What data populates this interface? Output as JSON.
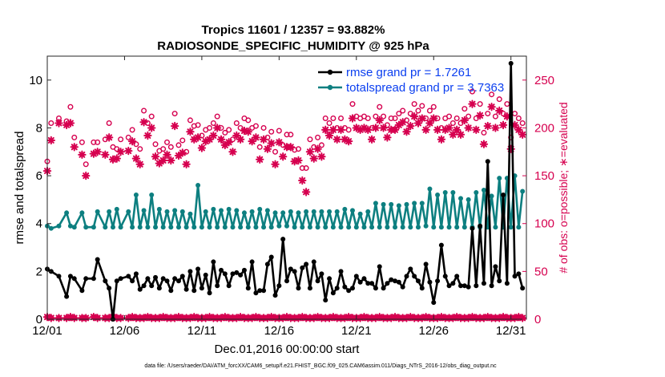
{
  "chart_data": {
    "type": "line",
    "title_line1": "Tropics 11601 / 12357 = 93.882%",
    "title_line2": "RADIOSONDE_SPECIFIC_HUMIDITY @ 925 hPa",
    "xlabel": "Dec.01,2016 00:00:00 start",
    "ylabel_left": "rmse and totalspread",
    "ylabel_right": "# of obs: o=possible; ∗=evaluated",
    "xlim": [
      1,
      32
    ],
    "ylim_left": [
      0,
      11
    ],
    "ylim_right": [
      0,
      275
    ],
    "x_ticks": [
      1,
      6,
      11,
      16,
      21,
      26,
      31
    ],
    "x_tick_labels": [
      "12/01",
      "12/06",
      "12/11",
      "12/16",
      "12/21",
      "12/26",
      "12/31"
    ],
    "y_ticks_left": [
      0,
      2,
      4,
      6,
      8,
      10
    ],
    "y_ticks_right": [
      0,
      50,
      100,
      150,
      200,
      250
    ],
    "colors": {
      "rmse": "#000000",
      "spread": "#0d7f80",
      "obs": "#d6004f",
      "legend_text": "#0b3ff0"
    },
    "legend": {
      "position": "top-right",
      "rmse_label": "rmse grand pr = 1.7261",
      "spread_label": "totalspread grand pr = 3.7363"
    },
    "x": [
      1.0,
      1.25,
      1.75,
      2.25,
      2.5,
      2.75,
      3.25,
      3.5,
      4.0,
      4.25,
      4.75,
      5.0,
      5.25,
      5.5,
      5.75,
      6.25,
      6.5,
      6.75,
      7.0,
      7.25,
      7.5,
      7.75,
      8.0,
      8.25,
      8.5,
      8.75,
      9.0,
      9.25,
      9.5,
      9.75,
      10.0,
      10.25,
      10.5,
      10.75,
      11.0,
      11.25,
      11.5,
      11.75,
      12.0,
      12.25,
      12.5,
      12.75,
      13.0,
      13.25,
      13.5,
      13.75,
      14.0,
      14.25,
      14.5,
      14.75,
      15.0,
      15.25,
      15.5,
      15.75,
      16.0,
      16.25,
      16.5,
      16.75,
      17.0,
      17.25,
      17.5,
      17.75,
      18.0,
      18.25,
      18.5,
      18.75,
      19.0,
      19.25,
      19.5,
      19.75,
      20.0,
      20.25,
      20.5,
      20.75,
      21.0,
      21.25,
      21.5,
      21.75,
      22.0,
      22.25,
      22.5,
      22.75,
      23.0,
      23.25,
      23.5,
      23.75,
      24.0,
      24.25,
      24.5,
      24.75,
      25.0,
      25.25,
      25.5,
      25.75,
      26.0,
      26.25,
      26.5,
      26.75,
      27.0,
      27.25,
      27.5,
      27.75,
      28.0,
      28.25,
      28.5,
      28.75,
      29.0,
      29.25,
      29.5,
      29.75,
      30.0,
      30.25,
      30.5,
      30.75,
      31.0,
      31.25,
      31.5,
      31.75
    ],
    "rmse": [
      2.1,
      2.0,
      1.8,
      0.95,
      1.8,
      1.7,
      1.2,
      1.7,
      1.7,
      2.5,
      1.6,
      1.3,
      0.0,
      1.6,
      1.7,
      1.8,
      1.6,
      1.9,
      1.25,
      1.4,
      1.7,
      1.4,
      1.75,
      1.3,
      1.7,
      1.6,
      1.2,
      1.7,
      1.6,
      1.8,
      1.25,
      2.0,
      1.2,
      2.1,
      1.3,
      1.85,
      1.1,
      2.4,
      1.4,
      2.05,
      1.9,
      1.4,
      1.9,
      1.95,
      1.85,
      2.05,
      1.3,
      2.4,
      1.1,
      1.2,
      1.2,
      2.3,
      2.6,
      1.0,
      1.4,
      3.35,
      1.6,
      2.1,
      2.0,
      1.3,
      2.15,
      2.3,
      1.3,
      2.4,
      1.6,
      1.9,
      0.8,
      1.7,
      1.1,
      1.3,
      2.0,
      1.35,
      1.2,
      1.3,
      1.8,
      1.55,
      1.7,
      1.5,
      1.5,
      1.3,
      2.2,
      1.3,
      1.5,
      1.65,
      1.6,
      1.55,
      1.35,
      1.8,
      2.1,
      1.8,
      1.6,
      1.3,
      2.3,
      1.55,
      0.7,
      1.6,
      3.1,
      1.8,
      1.4,
      1.5,
      1.8,
      1.4,
      1.4,
      1.35,
      3.8,
      1.4,
      3.9,
      1.5,
      6.6,
      1.4,
      2.2,
      1.6,
      5.2,
      1.5,
      10.7,
      1.8,
      1.9,
      1.3,
      7.3
    ],
    "spread": [
      3.9,
      3.8,
      3.9,
      4.45,
      3.9,
      3.85,
      4.45,
      3.85,
      3.85,
      4.5,
      3.85,
      4.5,
      3.85,
      4.6,
      3.85,
      4.5,
      3.85,
      5.2,
      3.85,
      4.55,
      3.85,
      5.2,
      3.85,
      4.6,
      3.85,
      4.5,
      3.85,
      4.55,
      3.85,
      4.5,
      3.85,
      4.4,
      3.85,
      5.6,
      3.85,
      4.5,
      3.85,
      4.6,
      3.85,
      4.55,
      3.85,
      4.6,
      3.85,
      4.55,
      3.85,
      4.45,
      3.85,
      4.5,
      3.85,
      4.6,
      3.85,
      4.55,
      3.85,
      4.45,
      3.9,
      4.45,
      3.9,
      4.5,
      3.85,
      4.45,
      3.85,
      4.5,
      3.85,
      4.5,
      3.85,
      4.5,
      3.85,
      4.5,
      3.85,
      4.5,
      3.85,
      4.6,
      3.85,
      4.55,
      3.85,
      4.4,
      3.85,
      4.5,
      3.85,
      4.85,
      3.85,
      4.8,
      3.85,
      4.8,
      3.85,
      4.75,
      3.85,
      4.8,
      3.85,
      4.85,
      3.85,
      4.85,
      3.9,
      5.45,
      3.85,
      5.2,
      3.85,
      5.3,
      3.85,
      5.3,
      3.85,
      5.05,
      3.85,
      5.0,
      3.85,
      5.3,
      3.85,
      5.4,
      3.85,
      5.15,
      3.85,
      5.9,
      3.85,
      5.9,
      3.85,
      6.0,
      3.85,
      5.35,
      6.4
    ],
    "obs_possible": [
      165,
      205,
      210,
      207,
      222,
      190,
      185,
      162,
      185,
      185,
      188,
      205,
      180,
      178,
      188,
      190,
      198,
      183,
      178,
      218,
      205,
      212,
      183,
      176,
      178,
      185,
      180,
      215,
      182,
      187,
      175,
      208,
      202,
      203,
      192,
      198,
      200,
      205,
      212,
      200,
      195,
      198,
      188,
      205,
      200,
      210,
      208,
      200,
      202,
      180,
      200,
      190,
      196,
      175,
      197,
      182,
      193,
      193,
      177,
      178,
      158,
      158,
      188,
      180,
      190,
      182,
      210,
      205,
      210,
      200,
      210,
      200,
      198,
      225,
      212,
      210,
      212,
      210,
      200,
      212,
      222,
      212,
      203,
      210,
      210,
      215,
      218,
      208,
      215,
      225,
      218,
      223,
      210,
      218,
      222,
      210,
      200,
      210,
      212,
      205,
      210,
      205,
      220,
      212,
      238,
      210,
      225,
      195,
      215,
      235,
      212,
      230,
      215,
      225,
      190,
      215,
      210,
      205,
      215
    ],
    "obs_evaluated": [
      155,
      187,
      205,
      203,
      205,
      180,
      172,
      150,
      173,
      175,
      172,
      190,
      167,
      168,
      175,
      176,
      186,
      168,
      162,
      206,
      192,
      200,
      170,
      163,
      166,
      172,
      166,
      202,
      171,
      174,
      162,
      196,
      188,
      190,
      179,
      186,
      188,
      192,
      200,
      188,
      182,
      185,
      175,
      192,
      188,
      197,
      196,
      186,
      190,
      167,
      188,
      178,
      184,
      162,
      185,
      170,
      180,
      180,
      165,
      166,
      145,
      133,
      175,
      168,
      178,
      170,
      198,
      192,
      198,
      188,
      198,
      188,
      186,
      210,
      200,
      198,
      200,
      198,
      188,
      200,
      208,
      200,
      190,
      198,
      198,
      203,
      206,
      196,
      202,
      212,
      205,
      210,
      198,
      205,
      210,
      198,
      188,
      198,
      200,
      193,
      198,
      193,
      208,
      200,
      225,
      198,
      213,
      183,
      202,
      222,
      200,
      218,
      203,
      212,
      178,
      203,
      198,
      193,
      203
    ],
    "footer": "data file: /Users/raeder/DAI/ATM_forcXX/CAM6_setup/f.e21.FHIST_BGC.f09_025.CAM6assim.011/Diags_NTrS_2016-12/obs_diag_output.nc"
  }
}
